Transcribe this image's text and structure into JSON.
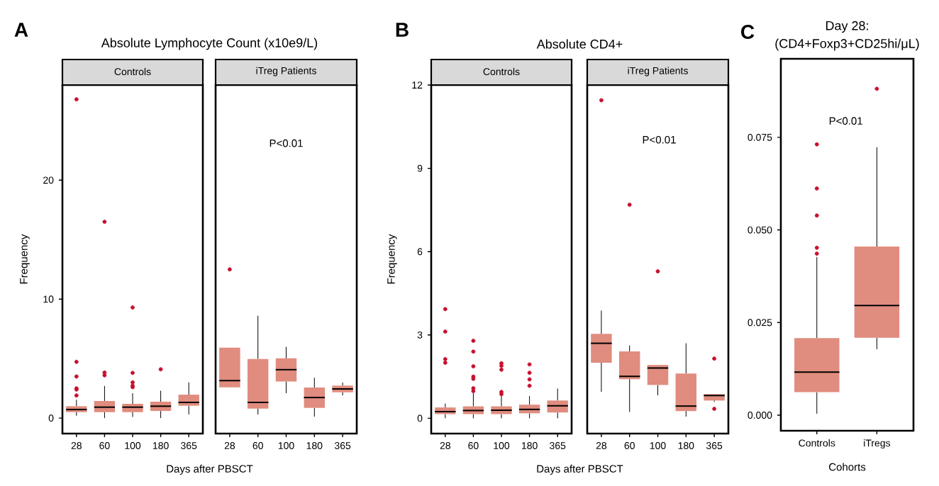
{
  "chart_data": [
    {
      "type": "box",
      "title": "Absolute Lymphocyte Count (x10e9/L)",
      "subtitle": "Controls",
      "xlabel": "Days after PBSCT",
      "ylabel": "Frequency",
      "annotations": [
        "A"
      ],
      "categories": [
        "28",
        "60",
        "100",
        "180",
        "365"
      ],
      "color": "#e08c7e",
      "ylim": [
        -1.3,
        28
      ],
      "yticks": [
        0,
        10,
        20
      ],
      "boxes": [
        {
          "low": 0.2,
          "q1": 0.5,
          "median": 0.72,
          "q3": 1.0,
          "high": 1.54,
          "outliers": [
            26.8,
            4.73,
            3.5,
            2.5,
            2.4,
            1.9
          ]
        },
        {
          "low": 0,
          "q1": 0.5,
          "median": 0.92,
          "q3": 1.44,
          "high": 2.7,
          "outliers": [
            16.5,
            3.83,
            3.6
          ]
        },
        {
          "low": 0.1,
          "q1": 0.5,
          "median": 0.92,
          "q3": 1.2,
          "high": 2.1,
          "outliers": [
            9.3,
            3.8,
            3.0,
            2.73,
            2.6
          ]
        },
        {
          "low": 0,
          "q1": 0.6,
          "median": 1.0,
          "q3": 1.38,
          "high": 2.3,
          "outliers": [
            4.1
          ]
        },
        {
          "low": 0.3,
          "q1": 1.04,
          "median": 1.32,
          "q3": 1.97,
          "high": 3.0
        }
      ]
    },
    {
      "type": "box",
      "subtitle": "iTreg Patients",
      "annotations": [
        "P<0.01"
      ],
      "categories": [
        "28",
        "60",
        "100",
        "180",
        "365"
      ],
      "color": "#e08c7e",
      "ylim": [
        -1.3,
        28
      ],
      "tick_labels": "x",
      "boxes": [
        {
          "low": 2.59,
          "q1": 2.59,
          "median": 3.15,
          "q3": 5.92,
          "high": 5.92,
          "outliers": [
            12.5
          ]
        },
        {
          "low": 0.3,
          "q1": 0.8,
          "median": 1.32,
          "q3": 4.97,
          "high": 8.6
        },
        {
          "low": 2.09,
          "q1": 3.07,
          "median": 4.07,
          "q3": 5.02,
          "high": 5.98
        },
        {
          "low": 0.12,
          "q1": 0.86,
          "median": 1.73,
          "q3": 2.57,
          "high": 3.39
        },
        {
          "low": 1.91,
          "q1": 2.17,
          "median": 2.45,
          "q3": 2.73,
          "high": 2.99
        }
      ]
    },
    {
      "type": "box",
      "title": "Absolute CD4+",
      "subtitle": "Controls",
      "xlabel": "Days after PBSCT",
      "ylabel": "Frequency",
      "annotations": [
        "B"
      ],
      "categories": [
        "28",
        "60",
        "100",
        "180",
        "365"
      ],
      "color": "#e08c7e",
      "ylim": [
        -0.55,
        12
      ],
      "yticks": [
        0,
        3,
        6,
        9,
        12
      ],
      "boxes": [
        {
          "low": 0,
          "q1": 0.15,
          "median": 0.24,
          "q3": 0.39,
          "high": 0.53,
          "outliers": [
            3.93,
            3.12,
            2.13,
            2.0
          ]
        },
        {
          "low": 0,
          "q1": 0.15,
          "median": 0.28,
          "q3": 0.43,
          "high": 0.91,
          "outliers": [
            2.79,
            2.4,
            1.87,
            1.5,
            1.42,
            1.08,
            0.98
          ]
        },
        {
          "low": 0,
          "q1": 0.15,
          "median": 0.29,
          "q3": 0.43,
          "high": 0.83,
          "outliers": [
            1.98,
            1.89,
            1.75,
            0.95,
            0.87
          ]
        },
        {
          "low": 0,
          "q1": 0.18,
          "median": 0.32,
          "q3": 0.49,
          "high": 0.8,
          "outliers": [
            1.94,
            1.64,
            1.4,
            1.17
          ]
        },
        {
          "low": 0,
          "q1": 0.21,
          "median": 0.45,
          "q3": 0.64,
          "high": 1.07
        }
      ]
    },
    {
      "type": "box",
      "subtitle": "iTreg Patients",
      "annotations": [
        "P<0.01"
      ],
      "categories": [
        "28",
        "60",
        "100",
        "180",
        "365"
      ],
      "color": "#e08c7e",
      "ylim": [
        -0.55,
        12
      ],
      "tick_labels": "x",
      "boxes": [
        {
          "low": 0.95,
          "q1": 2.0,
          "median": 2.7,
          "q3": 3.04,
          "high": 3.88,
          "outliers": [
            11.45
          ]
        },
        {
          "low": 0.23,
          "q1": 1.41,
          "median": 1.51,
          "q3": 2.41,
          "high": 2.62,
          "outliers": [
            7.69
          ]
        },
        {
          "low": 0.83,
          "q1": 1.2,
          "median": 1.81,
          "q3": 1.92,
          "high": 1.92,
          "outliers": [
            5.29
          ]
        },
        {
          "low": 0.06,
          "q1": 0.26,
          "median": 0.44,
          "q3": 1.61,
          "high": 2.7
        },
        {
          "low": 0.59,
          "q1": 0.64,
          "median": 0.82,
          "q3": 0.87,
          "high": 0.87,
          "outliers": [
            2.15,
            0.34
          ]
        }
      ]
    },
    {
      "type": "box",
      "title": "Day 28:",
      "subtitle": "(CD4+Foxp3+CD25hi/μL)",
      "xlabel": "Cohorts",
      "annotations": [
        "C",
        "P<0.01"
      ],
      "categories": [
        "Controls",
        "iTregs"
      ],
      "color": "#e08c7e",
      "ylim": [
        -0.0042,
        0.0962
      ],
      "yticks": [
        {
          "value": 0,
          "label": "0.000"
        },
        {
          "value": 0.025,
          "label": "0.025"
        },
        {
          "value": 0.05,
          "label": "0.050"
        },
        {
          "value": 0.075,
          "label": "0.075"
        }
      ],
      "boxes": [
        {
          "low": 0.0004,
          "q1": 0.0062,
          "median": 0.0116,
          "q3": 0.0208,
          "high": 0.0427,
          "outliers": [
            0.0731,
            0.0612,
            0.0539,
            0.0452,
            0.0436
          ]
        },
        {
          "low": 0.0178,
          "q1": 0.0209,
          "median": 0.0296,
          "q3": 0.0455,
          "high": 0.0723,
          "outliers": [
            0.0881
          ]
        }
      ]
    }
  ]
}
